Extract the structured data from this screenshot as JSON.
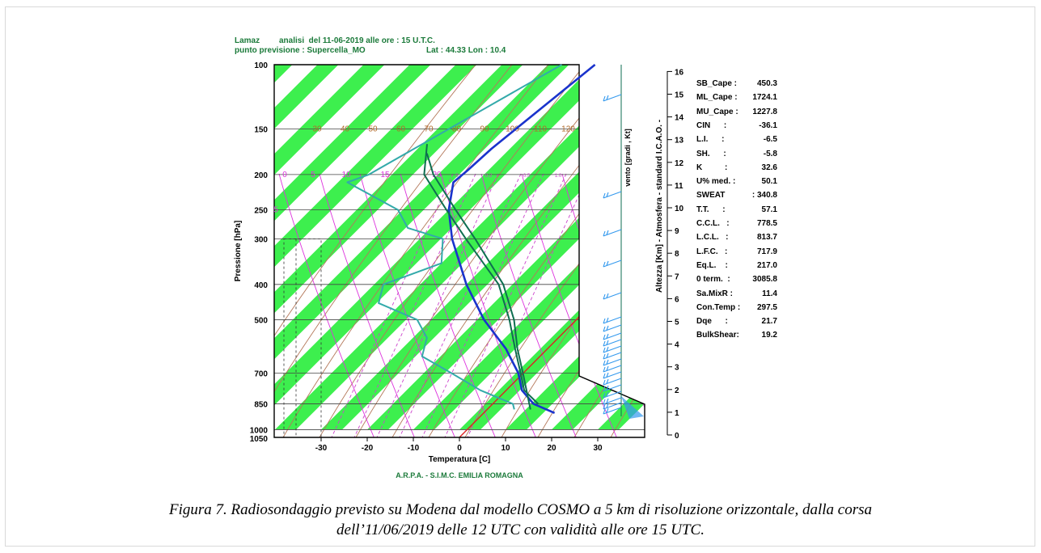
{
  "header": {
    "line1_left": "Lamaz",
    "line1_right": "analisi  del 11-06-2019 alle ore : 15 U.T.C.",
    "line2_left": "punto previsione : Supercella_MO",
    "line2_right": "Lat : 44.33 Lon : 10.4"
  },
  "footer": "A.R.P.A. - S.I.M.C.  EMILIA ROMAGNA",
  "caption": {
    "line1": "Figura 7. Radiosondaggio previsto su Modena dal modello COSMO a 5 km di risoluzione orizzontale, dalla corsa",
    "line2": "dell’11/06/2019 delle 12 UTC con validità alle ore 15 UTC."
  },
  "colors": {
    "band": "#33ee44",
    "temp": "#1a33cc",
    "dew": "#33aaaa",
    "parcel": "#0e6e50",
    "dry_adiabat": "#b4785a",
    "moist_adiabat": "#dd33dd",
    "mixing": "#cc44cc",
    "wind": "#3399ee",
    "zero_iso": "#dd2222",
    "label": "#1b7a3a"
  },
  "indices": [
    {
      "name": "SB_Cape :",
      "value": "450.3"
    },
    {
      "name": "ML_Cape :",
      "value": "1724.1"
    },
    {
      "name": "MU_Cape :",
      "value": "1227.8"
    },
    {
      "name": "CIN      :",
      "value": "-36.1"
    },
    {
      "name": "L.I.      :",
      "value": "-6.5"
    },
    {
      "name": "SH.      :",
      "value": "-5.8"
    },
    {
      "name": "K          :",
      "value": "32.6"
    },
    {
      "name": "U% med. :",
      "value": "50.1"
    },
    {
      "name": "SWEAT",
      "value": ": 340.8"
    },
    {
      "name": "T.T.      :",
      "value": "57.1"
    },
    {
      "name": "C.C.L.   :",
      "value": "778.5"
    },
    {
      "name": "L.C.L.   :",
      "value": "813.7"
    },
    {
      "name": "L.F.C.   :",
      "value": "717.9"
    },
    {
      "name": "Eq.L.    :",
      "value": "217.0"
    },
    {
      "name": "0 term.  :",
      "value": "3085.8"
    },
    {
      "name": "Sa.MixR :",
      "value": "11.4"
    },
    {
      "name": "Con.Temp :",
      "value": "297.5"
    },
    {
      "name": "Dqe      :",
      "value": "21.7"
    },
    {
      "name": "BulkShear:",
      "value": "19.2"
    }
  ],
  "chart_data": {
    "type": "line",
    "subtype": "skew-T log-P",
    "xlabel": "Temperatura [C]",
    "ylabel": "Pressione [hPa]",
    "right_axis_label": "Altezza [Km] - Atmosfera - standard I.C.A.O. -",
    "wind_axis_label": "vento [gradi , Kt]",
    "y_scale": "log",
    "y_ticks": [
      100,
      150,
      200,
      250,
      300,
      400,
      500,
      700,
      850,
      1000,
      1050
    ],
    "y_tick_labels": [
      "100",
      "150",
      "200",
      "250",
      "300",
      "400",
      "500",
      "700",
      "850",
      "1000",
      "1050"
    ],
    "x_ticks": [
      -30,
      -20,
      -10,
      0,
      10,
      20,
      30
    ],
    "x_tick_labels": [
      "-30",
      "-20",
      "-10",
      "0",
      "10",
      "20",
      "30"
    ],
    "height_ticks": [
      16,
      15,
      14,
      13,
      12,
      11,
      10,
      9,
      8,
      7,
      6,
      5,
      4,
      3,
      2,
      1,
      0
    ],
    "height_tick_labels": [
      "16",
      "15",
      "14",
      "13",
      "12",
      "11",
      "10",
      "9",
      "8",
      "7",
      "6",
      "5",
      "4",
      "3",
      "2",
      "1",
      "0"
    ],
    "dry_adiabat_labels": [
      "30",
      "40",
      "50",
      "60",
      "70",
      "80",
      "90",
      "100",
      "110",
      "120"
    ],
    "moist_labels": [
      "0",
      "5",
      "10",
      "15",
      "20",
      "5"
    ],
    "mixing_labels": [
      "0",
      "0.2",
      "0.5",
      "1.0"
    ],
    "grid": true,
    "series": [
      {
        "name": "Temperature",
        "points": [
          [
            100,
            -49.8
          ],
          [
            170,
            -54.0
          ],
          [
            195,
            -54.5
          ],
          [
            210,
            -55.0
          ],
          [
            250,
            -50.0
          ],
          [
            300,
            -43.0
          ],
          [
            400,
            -30.0
          ],
          [
            500,
            -18.5
          ],
          [
            600,
            -7.5
          ],
          [
            700,
            0.5
          ],
          [
            780,
            5.0
          ],
          [
            850,
            10.5
          ],
          [
            900,
            17.0
          ]
        ]
      },
      {
        "name": "Dew point",
        "points": [
          [
            100,
            -57.0
          ],
          [
            200,
            -75.0
          ],
          [
            210,
            -78.0
          ],
          [
            250,
            -61.0
          ],
          [
            280,
            -55.0
          ],
          [
            300,
            -45.0
          ],
          [
            350,
            -40.0
          ],
          [
            400,
            -48.0
          ],
          [
            450,
            -45.0
          ],
          [
            500,
            -33.0
          ],
          [
            560,
            -27.0
          ],
          [
            630,
            -24.0
          ],
          [
            700,
            -14.0
          ],
          [
            780,
            -4.0
          ],
          [
            850,
            6.0
          ],
          [
            880,
            7.5
          ]
        ]
      },
      {
        "name": "Parcel 1",
        "points": [
          [
            165,
            -69.0
          ],
          [
            200,
            -63.0
          ],
          [
            250,
            -50.5
          ],
          [
            300,
            -40.0
          ],
          [
            400,
            -23.0
          ],
          [
            500,
            -13.0
          ],
          [
            600,
            -5.5
          ],
          [
            700,
            1.0
          ],
          [
            780,
            5.5
          ],
          [
            850,
            11.5
          ]
        ]
      },
      {
        "name": "Parcel 2",
        "points": [
          [
            175,
            -67.0
          ],
          [
            200,
            -61.0
          ],
          [
            250,
            -48.5
          ],
          [
            300,
            -38.0
          ],
          [
            400,
            -22.0
          ],
          [
            500,
            -12.0
          ],
          [
            600,
            -5.0
          ],
          [
            700,
            1.5
          ],
          [
            780,
            6.0
          ],
          [
            880,
            11.0
          ]
        ]
      }
    ]
  }
}
